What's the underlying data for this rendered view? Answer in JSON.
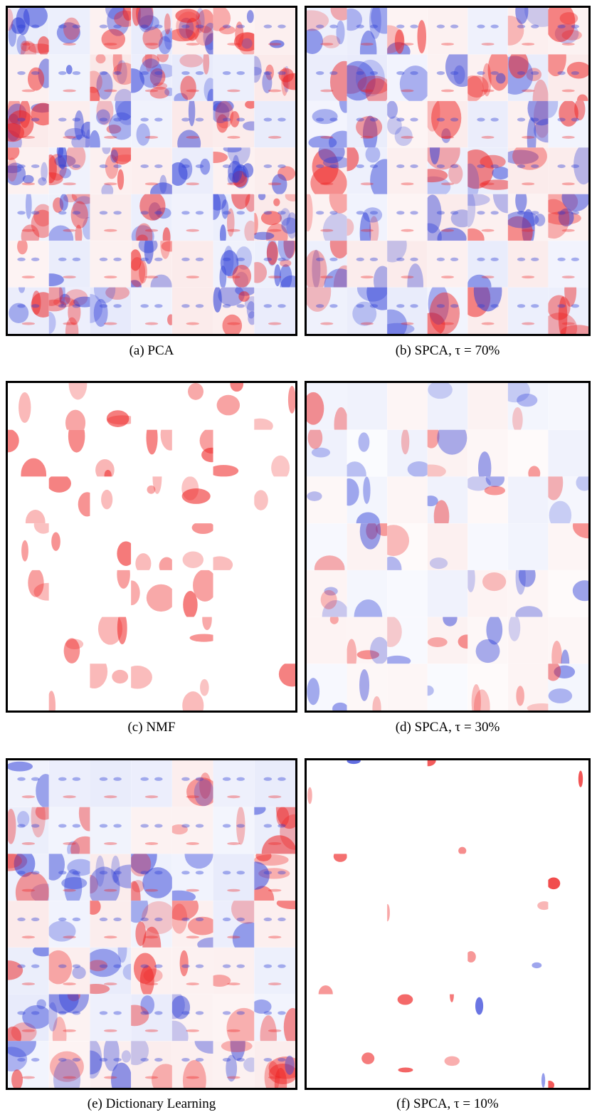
{
  "figures": [
    {
      "caption": "(a) PCA"
    },
    {
      "caption": "(b) SPCA, τ = 70%"
    },
    {
      "caption": "(c) NMF"
    },
    {
      "caption": "(d) SPCA, τ = 30%"
    },
    {
      "caption": "(e) Dictionary Learning"
    },
    {
      "caption": "(f) SPCA, τ = 10%"
    }
  ]
}
